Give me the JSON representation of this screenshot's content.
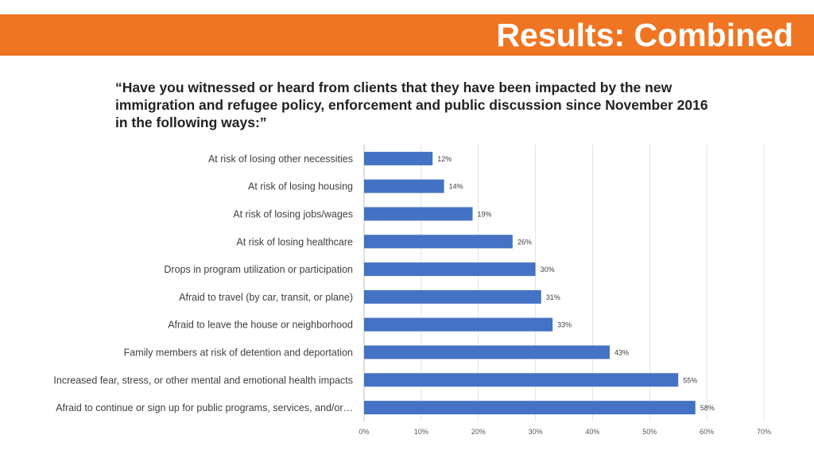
{
  "header": {
    "title": "Results: Combined",
    "band_color": "#f07522"
  },
  "question": "“Have you witnessed or heard from clients that they have been impacted by the new immigration and refugee policy, enforcement and public discussion since November 2016 in the following ways:”",
  "chart_data": {
    "type": "bar",
    "orientation": "horizontal",
    "title": "",
    "xlabel": "",
    "ylabel": "",
    "categories": [
      "At risk of losing other necessities",
      "At risk of losing housing",
      "At risk of losing jobs/wages",
      "At risk of losing healthcare",
      "Drops in program utilization or participation",
      "Afraid to travel (by car, transit, or plane)",
      "Afraid to leave the house or neighborhood",
      "Family members at risk of detention and deportation",
      "Increased fear, stress, or other mental and emotional health impacts",
      "Afraid to continue or sign up for public programs, services, and/or…"
    ],
    "values": [
      12,
      14,
      19,
      26,
      30,
      31,
      33,
      43,
      55,
      58
    ],
    "data_labels": [
      "12%",
      "14%",
      "19%",
      "26%",
      "30%",
      "31%",
      "33%",
      "43%",
      "55%",
      "58%"
    ],
    "xlim": [
      0,
      70
    ],
    "x_ticks": [
      0,
      10,
      20,
      30,
      40,
      50,
      60,
      70
    ],
    "x_tick_labels": [
      "0%",
      "10%",
      "20%",
      "30%",
      "40%",
      "50%",
      "60%",
      "70%"
    ],
    "grid": true,
    "legend": "none",
    "bar_color": "#4472c4"
  }
}
